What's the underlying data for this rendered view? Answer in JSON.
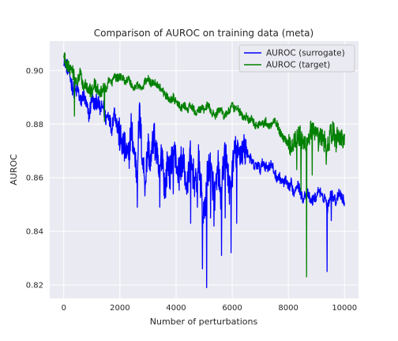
{
  "chart_data": {
    "type": "line",
    "title": "Comparison of AUROC on training data (meta)",
    "xlabel": "Number of perturbations",
    "ylabel": "AUROC",
    "xlim": [
      -500,
      10500
    ],
    "ylim": [
      0.815,
      0.911
    ],
    "xticks": [
      0,
      2000,
      4000,
      6000,
      8000,
      10000
    ],
    "yticks": [
      0.82,
      0.84,
      0.86,
      0.88,
      0.9
    ],
    "ytick_labels": [
      "0.82",
      "0.84",
      "0.86",
      "0.88",
      "0.90"
    ],
    "grid": true,
    "background": "#eaeaf2",
    "legend_position": "top-right",
    "series": [
      {
        "name": "AUROC (surrogate)",
        "color": "#0000ff",
        "x": [
          0,
          100,
          200,
          300,
          400,
          500,
          600,
          700,
          800,
          900,
          1000,
          1100,
          1200,
          1300,
          1400,
          1500,
          1600,
          1700,
          1800,
          1900,
          2000,
          2100,
          2200,
          2300,
          2400,
          2500,
          2600,
          2700,
          2800,
          2900,
          3000,
          3100,
          3200,
          3300,
          3400,
          3500,
          3600,
          3700,
          3800,
          3900,
          4000,
          4100,
          4200,
          4300,
          4400,
          4500,
          4600,
          4700,
          4800,
          4900,
          5000,
          5100,
          5200,
          5300,
          5400,
          5500,
          5600,
          5700,
          5800,
          5900,
          6000,
          6100,
          6200,
          6300,
          6400,
          6500,
          6600,
          6700,
          6800,
          6900,
          7000,
          7100,
          7200,
          7300,
          7400,
          7500,
          7600,
          7700,
          7800,
          7900,
          8000,
          8100,
          8200,
          8300,
          8400,
          8500,
          8600,
          8700,
          8800,
          8900,
          9000,
          9100,
          9200,
          9300,
          9400,
          9500,
          9600,
          9700,
          9800,
          9900,
          10000
        ],
        "y": [
          0.905,
          0.902,
          0.899,
          0.894,
          0.892,
          0.893,
          0.888,
          0.891,
          0.887,
          0.883,
          0.89,
          0.887,
          0.889,
          0.885,
          0.887,
          0.882,
          0.884,
          0.878,
          0.885,
          0.88,
          0.875,
          0.872,
          0.87,
          0.866,
          0.879,
          0.87,
          0.862,
          0.884,
          0.868,
          0.858,
          0.872,
          0.865,
          0.876,
          0.869,
          0.86,
          0.871,
          0.855,
          0.866,
          0.861,
          0.872,
          0.866,
          0.861,
          0.867,
          0.863,
          0.855,
          0.868,
          0.862,
          0.857,
          0.866,
          0.855,
          0.844,
          0.86,
          0.866,
          0.858,
          0.853,
          0.864,
          0.851,
          0.866,
          0.868,
          0.855,
          0.862,
          0.87,
          0.868,
          0.87,
          0.871,
          0.87,
          0.868,
          0.866,
          0.864,
          0.865,
          0.863,
          0.866,
          0.864,
          0.864,
          0.865,
          0.862,
          0.86,
          0.86,
          0.858,
          0.859,
          0.856,
          0.858,
          0.854,
          0.858,
          0.856,
          0.852,
          0.854,
          0.854,
          0.851,
          0.852,
          0.853,
          0.856,
          0.852,
          0.853,
          0.849,
          0.854,
          0.853,
          0.851,
          0.855,
          0.853,
          0.851
        ],
        "dips": [
          [
            1750,
            0.88
          ],
          [
            2300,
            0.873
          ],
          [
            2620,
            0.849
          ],
          [
            3420,
            0.849
          ],
          [
            3900,
            0.854
          ],
          [
            4520,
            0.843
          ],
          [
            4760,
            0.849
          ],
          [
            4940,
            0.826
          ],
          [
            5090,
            0.819
          ],
          [
            5230,
            0.845
          ],
          [
            5350,
            0.842
          ],
          [
            5620,
            0.831
          ],
          [
            5750,
            0.845
          ],
          [
            5960,
            0.832
          ],
          [
            6160,
            0.843
          ],
          [
            9380,
            0.825
          ],
          [
            9530,
            0.844
          ]
        ]
      },
      {
        "name": "AUROC (target)",
        "color": "#008000",
        "x": [
          0,
          100,
          200,
          300,
          400,
          500,
          600,
          700,
          800,
          900,
          1000,
          1100,
          1200,
          1300,
          1400,
          1500,
          1600,
          1700,
          1800,
          1900,
          2000,
          2100,
          2200,
          2300,
          2400,
          2500,
          2600,
          2700,
          2800,
          2900,
          3000,
          3100,
          3200,
          3300,
          3400,
          3500,
          3600,
          3700,
          3800,
          3900,
          4000,
          4100,
          4200,
          4300,
          4400,
          4500,
          4600,
          4700,
          4800,
          4900,
          5000,
          5100,
          5200,
          5300,
          5400,
          5500,
          5600,
          5700,
          5800,
          5900,
          6000,
          6100,
          6200,
          6300,
          6400,
          6500,
          6600,
          6700,
          6800,
          6900,
          7000,
          7100,
          7200,
          7300,
          7400,
          7500,
          7600,
          7700,
          7800,
          7900,
          8000,
          8100,
          8200,
          8300,
          8400,
          8500,
          8600,
          8700,
          8800,
          8900,
          9000,
          9100,
          9200,
          9300,
          9400,
          9500,
          9600,
          9700,
          9800,
          9900,
          10000
        ],
        "y": [
          0.905,
          0.903,
          0.901,
          0.9,
          0.897,
          0.896,
          0.899,
          0.894,
          0.895,
          0.893,
          0.892,
          0.895,
          0.893,
          0.891,
          0.894,
          0.892,
          0.897,
          0.895,
          0.898,
          0.897,
          0.898,
          0.897,
          0.896,
          0.897,
          0.895,
          0.893,
          0.895,
          0.894,
          0.893,
          0.896,
          0.897,
          0.895,
          0.896,
          0.895,
          0.894,
          0.893,
          0.891,
          0.89,
          0.889,
          0.89,
          0.888,
          0.887,
          0.886,
          0.887,
          0.885,
          0.887,
          0.886,
          0.884,
          0.885,
          0.886,
          0.885,
          0.887,
          0.886,
          0.884,
          0.883,
          0.885,
          0.886,
          0.883,
          0.884,
          0.885,
          0.887,
          0.885,
          0.886,
          0.884,
          0.882,
          0.883,
          0.881,
          0.882,
          0.88,
          0.879,
          0.881,
          0.88,
          0.881,
          0.879,
          0.88,
          0.882,
          0.88,
          0.877,
          0.875,
          0.874,
          0.873,
          0.872,
          0.874,
          0.875,
          0.876,
          0.872,
          0.873,
          0.874,
          0.878,
          0.876,
          0.875,
          0.874,
          0.875,
          0.873,
          0.872,
          0.876,
          0.877,
          0.874,
          0.876,
          0.875,
          0.873
        ],
        "dips": [
          [
            380,
            0.883
          ],
          [
            1450,
            0.881
          ],
          [
            8300,
            0.863
          ],
          [
            8450,
            0.855
          ],
          [
            8650,
            0.823
          ],
          [
            8850,
            0.861
          ],
          [
            9350,
            0.865
          ]
        ]
      }
    ]
  }
}
